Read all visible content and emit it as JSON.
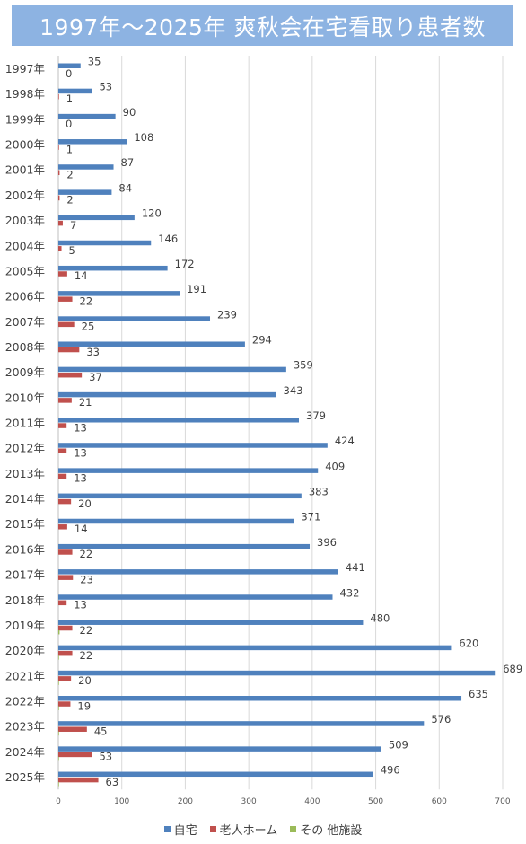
{
  "chart_data": {
    "type": "bar",
    "orientation": "horizontal",
    "title": "1997年～2025年 爽秋会在宅看取り患者数",
    "categories": [
      "1997年",
      "1998年",
      "1999年",
      "2000年",
      "2001年",
      "2002年",
      "2003年",
      "2004年",
      "2005年",
      "2006年",
      "2007年",
      "2008年",
      "2009年",
      "2010年",
      "2011年",
      "2012年",
      "2013年",
      "2014年",
      "2015年",
      "2016年",
      "2017年",
      "2018年",
      "2019年",
      "2020年",
      "2021年",
      "2022年",
      "2023年",
      "2024年",
      "2025年"
    ],
    "series": [
      {
        "name": "自宅",
        "color": "#4f81bd",
        "values": [
          35,
          53,
          90,
          108,
          87,
          84,
          120,
          146,
          172,
          191,
          239,
          294,
          359,
          343,
          379,
          424,
          409,
          383,
          371,
          396,
          441,
          432,
          480,
          620,
          689,
          635,
          576,
          509,
          496
        ]
      },
      {
        "name": "老人ホーム",
        "color": "#c0504d",
        "values": [
          0,
          1,
          0,
          1,
          2,
          2,
          7,
          5,
          14,
          22,
          25,
          33,
          37,
          21,
          13,
          13,
          13,
          20,
          14,
          22,
          23,
          13,
          22,
          22,
          20,
          19,
          45,
          53,
          63
        ]
      },
      {
        "name": "その 他施設",
        "color": "#9bbb59",
        "values": [
          0,
          0,
          0,
          0,
          0,
          0,
          0,
          0,
          0,
          0,
          0,
          0,
          0,
          0,
          0,
          0,
          0,
          0,
          0,
          0,
          0,
          0,
          2,
          1,
          1,
          1,
          1,
          1,
          1
        ]
      }
    ],
    "xlim": [
      0,
      700
    ],
    "xticks": [
      0,
      100,
      200,
      300,
      400,
      500,
      600,
      700
    ],
    "grid": "vertical",
    "legend": "bottom",
    "data_labels": [
      "自宅",
      "老人ホーム"
    ]
  }
}
